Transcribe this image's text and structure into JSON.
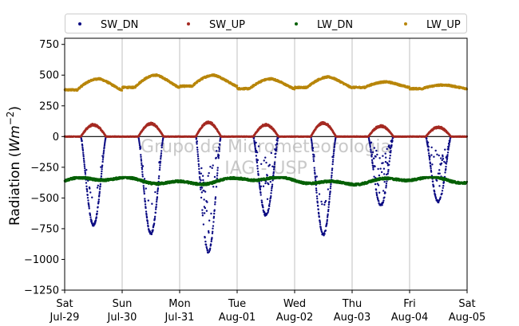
{
  "chart_data": {
    "type": "scatter",
    "ylabel": "Radiation ($Wm^{-2}$)",
    "ylabel_parts": {
      "main": "Radiation (",
      "italic": "Wm",
      "sup": "−2",
      "close": ")"
    },
    "ylim": [
      -1250,
      800
    ],
    "yticks": [
      -1250,
      -1000,
      -750,
      -500,
      -250,
      0,
      250,
      500,
      750
    ],
    "ytick_labels": [
      "−1250",
      "−1000",
      "−750",
      "−500",
      "−250",
      "0",
      "250",
      "500",
      "750"
    ],
    "xlim": [
      "2023-07-29",
      "2023-08-05"
    ],
    "xticks": [
      {
        "day": "Sat",
        "date": "Jul-29"
      },
      {
        "day": "Sun",
        "date": "Jul-30"
      },
      {
        "day": "Mon",
        "date": "Jul-31"
      },
      {
        "day": "Tue",
        "date": "Aug-01"
      },
      {
        "day": "Wed",
        "date": "Aug-02"
      },
      {
        "day": "Thu",
        "date": "Aug-03"
      },
      {
        "day": "Fri",
        "date": "Aug-04"
      },
      {
        "day": "Sat",
        "date": "Aug-05"
      }
    ],
    "grid": "vertical",
    "zero_line": true,
    "legend_position": "top",
    "watermark": [
      "Grupo de Micrometeorologia",
      "IAG - USP"
    ],
    "series": [
      {
        "name": "SW_DN",
        "color": "#0a0a82",
        "daily_min": [
          -720,
          -790,
          -940,
          -640,
          -800,
          -560,
          -530
        ],
        "daily_peak_time": [
          0.5,
          0.5,
          0.48,
          0.47,
          0.49,
          0.5,
          0.5
        ],
        "night_value": 0
      },
      {
        "name": "SW_UP",
        "color": "#a52a22",
        "daily_max": [
          95,
          105,
          115,
          95,
          110,
          85,
          75
        ],
        "night_value": 0
      },
      {
        "name": "LW_DN",
        "color": "#066006",
        "baseline": -360,
        "range": [
          -420,
          -330
        ]
      },
      {
        "name": "LW_UP",
        "color": "#b8860b",
        "daily_night": [
          380,
          400,
          410,
          390,
          400,
          400,
          390
        ],
        "daily_max": [
          470,
          500,
          500,
          470,
          485,
          445,
          420
        ]
      }
    ]
  }
}
